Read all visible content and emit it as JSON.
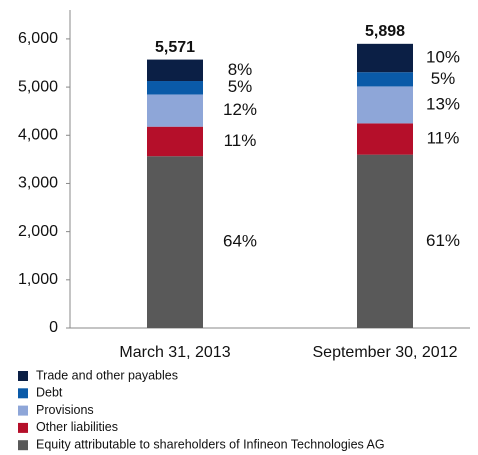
{
  "chart_data": {
    "type": "stacked_bar",
    "categories": [
      "March 31, 2013",
      "September 30, 2012"
    ],
    "series": [
      {
        "name": "Trade and other payables",
        "color": "#0b1f45",
        "values": [
          445,
          589
        ],
        "value_labels": [
          "8%",
          "10%"
        ]
      },
      {
        "name": "Debt",
        "color": "#0a5aa8",
        "values": [
          279,
          295
        ],
        "value_labels": [
          "5%",
          "5%"
        ]
      },
      {
        "name": "Provisions",
        "color": "#8ea6d8",
        "values": [
          669,
          767
        ],
        "value_labels": [
          "12%",
          "13%"
        ]
      },
      {
        "name": "Other liabilities",
        "color": "#b50f2a",
        "values": [
          613,
          649
        ],
        "value_labels": [
          "11%",
          "11%"
        ]
      },
      {
        "name": "Equity attributable to shareholders of Infineon Technologies AG",
        "color": "#595959",
        "values": [
          3565,
          3598
        ],
        "value_labels": [
          "64%",
          "61%"
        ]
      }
    ],
    "totals": [
      5571,
      5898
    ],
    "total_labels": [
      "5,571",
      "5,898"
    ],
    "ylim": [
      0,
      6600
    ],
    "yticks": [
      0,
      {
        "value": 1000,
        "label": "1,000"
      },
      {
        "value": 2000,
        "label": "2,000"
      },
      {
        "value": 3000,
        "label": "3,000"
      },
      {
        "value": 4000,
        "label": "4,000"
      },
      {
        "value": 5000,
        "label": "5,000"
      },
      {
        "value": 6000,
        "label": "6,000"
      }
    ],
    "grid": false
  }
}
